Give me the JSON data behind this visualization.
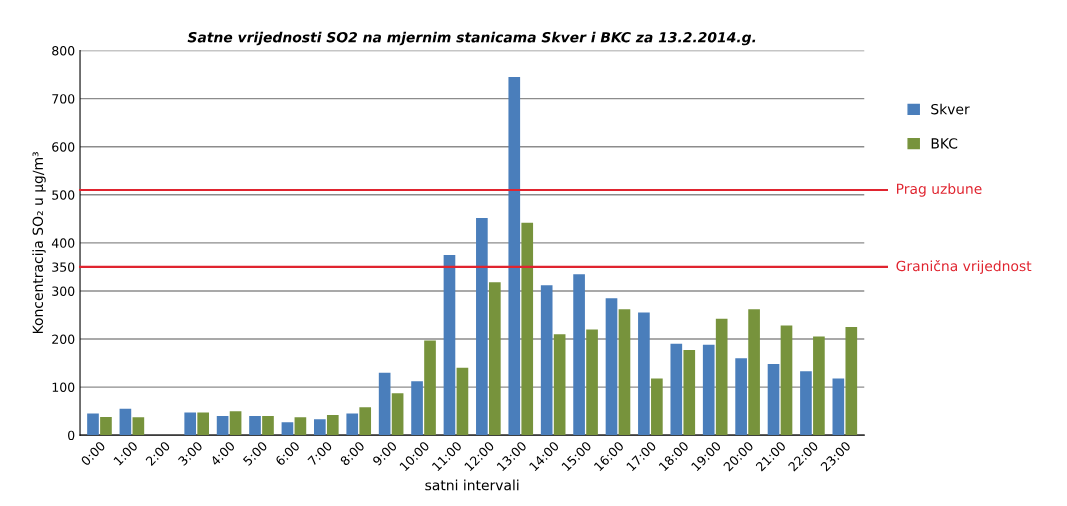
{
  "chart_data": {
    "type": "bar",
    "title": "Satne vrijednosti SO2 na mjernim stanicama Skver i BKC za 13.2.2014.g.",
    "xlabel": "satni intervali",
    "ylabel": "Koncentracija SO₂ u µg/m³",
    "categories": [
      "0:00",
      "1:00",
      "2:00",
      "3:00",
      "4:00",
      "5:00",
      "6:00",
      "7:00",
      "8:00",
      "9:00",
      "10:00",
      "11:00",
      "12:00",
      "13:00",
      "14:00",
      "15:00",
      "16:00",
      "17:00",
      "18:00",
      "19:00",
      "20:00",
      "21:00",
      "22:00",
      "23:00"
    ],
    "series": [
      {
        "name": "Skver",
        "color": "#4a7ebb",
        "values": [
          45,
          55,
          null,
          47,
          40,
          40,
          27,
          33,
          45,
          130,
          112,
          375,
          452,
          745,
          312,
          335,
          285,
          255,
          190,
          188,
          160,
          148,
          133,
          118
        ]
      },
      {
        "name": "BKC",
        "color": "#77933c",
        "values": [
          38,
          37,
          null,
          47,
          50,
          40,
          37,
          42,
          58,
          87,
          197,
          140,
          318,
          442,
          210,
          220,
          262,
          118,
          177,
          242,
          262,
          228,
          205,
          225
        ]
      }
    ],
    "ylim": [
      0,
      800
    ],
    "yticks": [
      0,
      100,
      200,
      300,
      350,
      400,
      500,
      600,
      700,
      800
    ],
    "ref_lines": [
      {
        "axis": "y",
        "value": 510,
        "label": "Prag uzbune",
        "color": "#e0242f"
      },
      {
        "axis": "y",
        "value": 350,
        "label": "Granična vrijednost",
        "color": "#e0242f"
      }
    ],
    "grid": "y",
    "legend": "right"
  }
}
